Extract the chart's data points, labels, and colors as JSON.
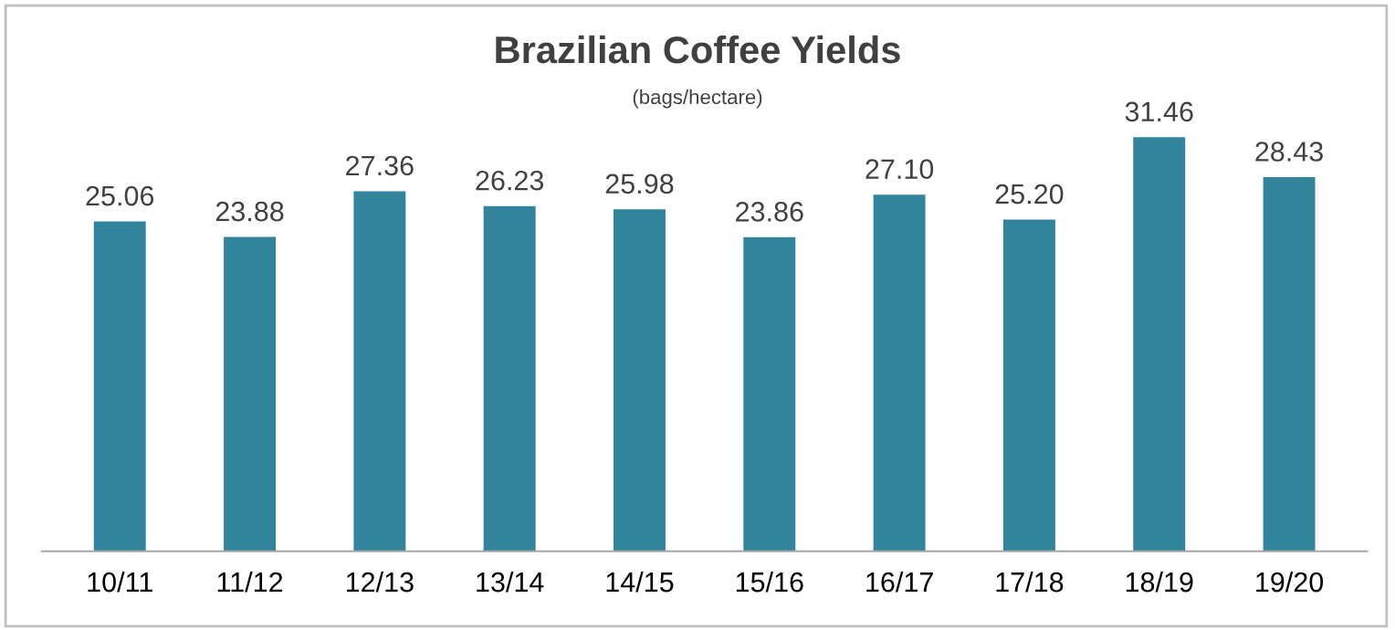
{
  "chart_data": {
    "type": "bar",
    "title": "Brazilian Coffee Yields",
    "subtitle": "(bags/hectare)",
    "categories": [
      "10/11",
      "11/12",
      "12/13",
      "13/14",
      "14/15",
      "15/16",
      "16/17",
      "17/18",
      "18/19",
      "19/20"
    ],
    "values": [
      25.06,
      23.88,
      27.36,
      26.23,
      25.98,
      23.86,
      27.1,
      25.2,
      31.46,
      28.43
    ],
    "value_labels": [
      "25.06",
      "23.88",
      "27.36",
      "26.23",
      "25.98",
      "23.86",
      "27.10",
      "25.20",
      "31.46",
      "28.43"
    ],
    "color": "#31849b",
    "tick_labels": "x",
    "grid": false,
    "legend": false
  }
}
